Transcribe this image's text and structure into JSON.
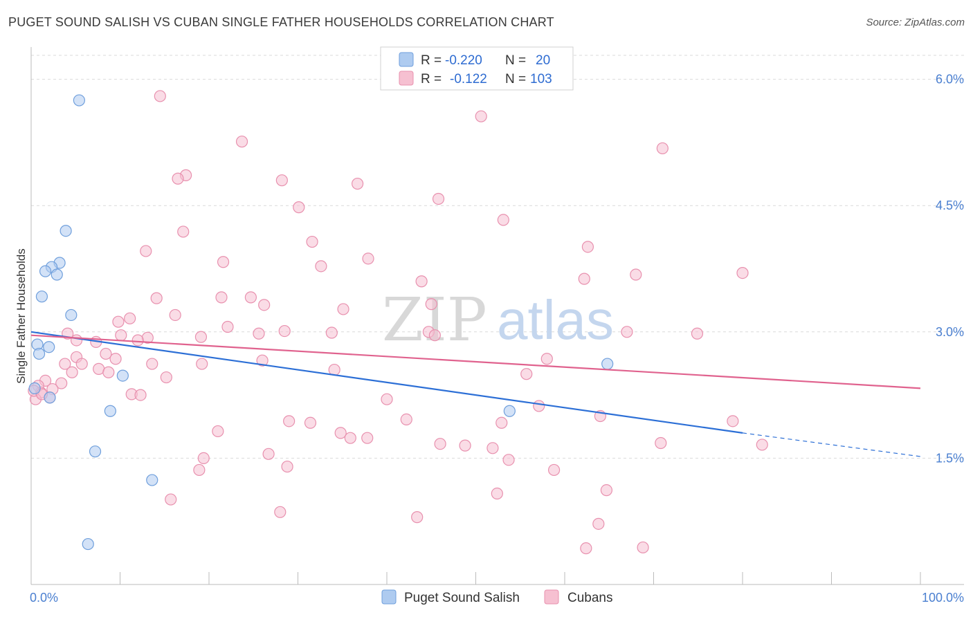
{
  "title": "PUGET SOUND SALISH VS CUBAN SINGLE FATHER HOUSEHOLDS CORRELATION CHART",
  "source": "Source: ZipAtlas.com",
  "watermark": {
    "zip": "ZIP",
    "atlas": "atlas"
  },
  "legend_top": {
    "row1": {
      "r_label": "R = ",
      "r_value": "-0.220",
      "n_label": "N = ",
      "n_value": "20"
    },
    "row2": {
      "r_label": "R = ",
      "r_value": "-0.122",
      "n_label": "N = ",
      "n_value": "103"
    }
  },
  "colors": {
    "blue_fill": "#aecbf0",
    "blue_stroke": "#6f9fdc",
    "blue_line": "#2c6fd6",
    "pink_fill": "#f6c0d1",
    "pink_stroke": "#e890ae",
    "pink_line": "#e0628e",
    "grid": "#d9d9d9",
    "axis": "#bbbbbb"
  },
  "chart_data": {
    "type": "scatter",
    "xlabel": "",
    "ylabel": "Single Father Households",
    "xlim": [
      0,
      100
    ],
    "ylim": [
      0,
      6.35
    ],
    "x_tick_labels": [
      "0.0%",
      "100.0%"
    ],
    "y_ticks": [
      1.5,
      3.0,
      4.5,
      6.0
    ],
    "y_tick_labels": [
      "1.5%",
      "3.0%",
      "4.5%",
      "6.0%"
    ],
    "grid": true,
    "legend_placement": "top-center",
    "series": [
      {
        "name": "Puget Sound Salish",
        "color": "blue",
        "points": [
          [
            5.4,
            5.75
          ],
          [
            3.9,
            4.2
          ],
          [
            3.2,
            3.82
          ],
          [
            2.3,
            3.77
          ],
          [
            1.6,
            3.72
          ],
          [
            2.9,
            3.68
          ],
          [
            1.2,
            3.42
          ],
          [
            4.5,
            3.2
          ],
          [
            0.7,
            2.85
          ],
          [
            2.0,
            2.82
          ],
          [
            0.9,
            2.74
          ],
          [
            10.3,
            2.48
          ],
          [
            0.4,
            2.33
          ],
          [
            2.1,
            2.22
          ],
          [
            8.9,
            2.06
          ],
          [
            7.2,
            1.58
          ],
          [
            13.6,
            1.24
          ],
          [
            6.4,
            0.48
          ],
          [
            64.8,
            2.62
          ],
          [
            53.8,
            2.06
          ]
        ],
        "trend": {
          "x": [
            0,
            80,
            100
          ],
          "y": [
            3.0,
            1.8,
            1.52
          ],
          "solid_until_x": 80
        }
      },
      {
        "name": "Cubans",
        "color": "pink",
        "points": [
          [
            14.5,
            5.8
          ],
          [
            50.6,
            5.56
          ],
          [
            23.7,
            5.26
          ],
          [
            71.0,
            5.18
          ],
          [
            17.4,
            4.86
          ],
          [
            16.5,
            4.82
          ],
          [
            28.2,
            4.8
          ],
          [
            36.7,
            4.76
          ],
          [
            45.8,
            4.58
          ],
          [
            30.1,
            4.48
          ],
          [
            53.1,
            4.33
          ],
          [
            17.1,
            4.19
          ],
          [
            31.6,
            4.07
          ],
          [
            62.6,
            4.01
          ],
          [
            12.9,
            3.96
          ],
          [
            37.9,
            3.87
          ],
          [
            21.6,
            3.83
          ],
          [
            32.6,
            3.78
          ],
          [
            80.0,
            3.7
          ],
          [
            68.0,
            3.68
          ],
          [
            62.2,
            3.63
          ],
          [
            43.9,
            3.6
          ],
          [
            14.1,
            3.4
          ],
          [
            21.4,
            3.41
          ],
          [
            24.7,
            3.41
          ],
          [
            45.0,
            3.33
          ],
          [
            26.2,
            3.32
          ],
          [
            35.1,
            3.27
          ],
          [
            16.2,
            3.2
          ],
          [
            11.1,
            3.16
          ],
          [
            9.8,
            3.12
          ],
          [
            22.1,
            3.06
          ],
          [
            44.7,
            3.0
          ],
          [
            28.5,
            3.01
          ],
          [
            33.8,
            2.99
          ],
          [
            25.6,
            2.98
          ],
          [
            67.0,
            3.0
          ],
          [
            74.9,
            2.98
          ],
          [
            45.4,
            2.96
          ],
          [
            19.1,
            2.94
          ],
          [
            10.1,
            2.96
          ],
          [
            4.1,
            2.98
          ],
          [
            13.1,
            2.93
          ],
          [
            5.1,
            2.9
          ],
          [
            12.0,
            2.9
          ],
          [
            7.3,
            2.88
          ],
          [
            8.4,
            2.74
          ],
          [
            5.1,
            2.7
          ],
          [
            9.5,
            2.68
          ],
          [
            26.0,
            2.66
          ],
          [
            58.0,
            2.68
          ],
          [
            3.8,
            2.62
          ],
          [
            5.7,
            2.62
          ],
          [
            13.6,
            2.62
          ],
          [
            19.2,
            2.62
          ],
          [
            7.6,
            2.56
          ],
          [
            8.7,
            2.52
          ],
          [
            4.6,
            2.52
          ],
          [
            34.1,
            2.55
          ],
          [
            55.7,
            2.5
          ],
          [
            15.2,
            2.46
          ],
          [
            1.6,
            2.42
          ],
          [
            3.4,
            2.39
          ],
          [
            0.8,
            2.36
          ],
          [
            2.4,
            2.32
          ],
          [
            1.1,
            2.28
          ],
          [
            11.3,
            2.26
          ],
          [
            12.3,
            2.25
          ],
          [
            2.1,
            2.22
          ],
          [
            0.5,
            2.2
          ],
          [
            40.0,
            2.2
          ],
          [
            57.1,
            2.12
          ],
          [
            64.0,
            2.0
          ],
          [
            42.2,
            1.96
          ],
          [
            29.0,
            1.94
          ],
          [
            31.4,
            1.92
          ],
          [
            52.9,
            1.92
          ],
          [
            78.9,
            1.94
          ],
          [
            21.0,
            1.82
          ],
          [
            34.8,
            1.8
          ],
          [
            35.9,
            1.74
          ],
          [
            37.8,
            1.74
          ],
          [
            46.0,
            1.67
          ],
          [
            48.8,
            1.65
          ],
          [
            51.9,
            1.62
          ],
          [
            70.8,
            1.68
          ],
          [
            82.2,
            1.66
          ],
          [
            26.7,
            1.55
          ],
          [
            19.4,
            1.5
          ],
          [
            53.7,
            1.48
          ],
          [
            28.8,
            1.4
          ],
          [
            18.9,
            1.36
          ],
          [
            58.8,
            1.36
          ],
          [
            64.7,
            1.12
          ],
          [
            52.4,
            1.08
          ],
          [
            15.7,
            1.01
          ],
          [
            28.0,
            0.86
          ],
          [
            43.4,
            0.8
          ],
          [
            63.8,
            0.72
          ],
          [
            62.4,
            0.43
          ],
          [
            68.8,
            0.44
          ],
          [
            0.3,
            2.3
          ],
          [
            1.2,
            2.26
          ]
        ],
        "trend": {
          "x": [
            0,
            100
          ],
          "y": [
            2.96,
            2.33
          ],
          "solid_until_x": 100
        }
      }
    ]
  }
}
